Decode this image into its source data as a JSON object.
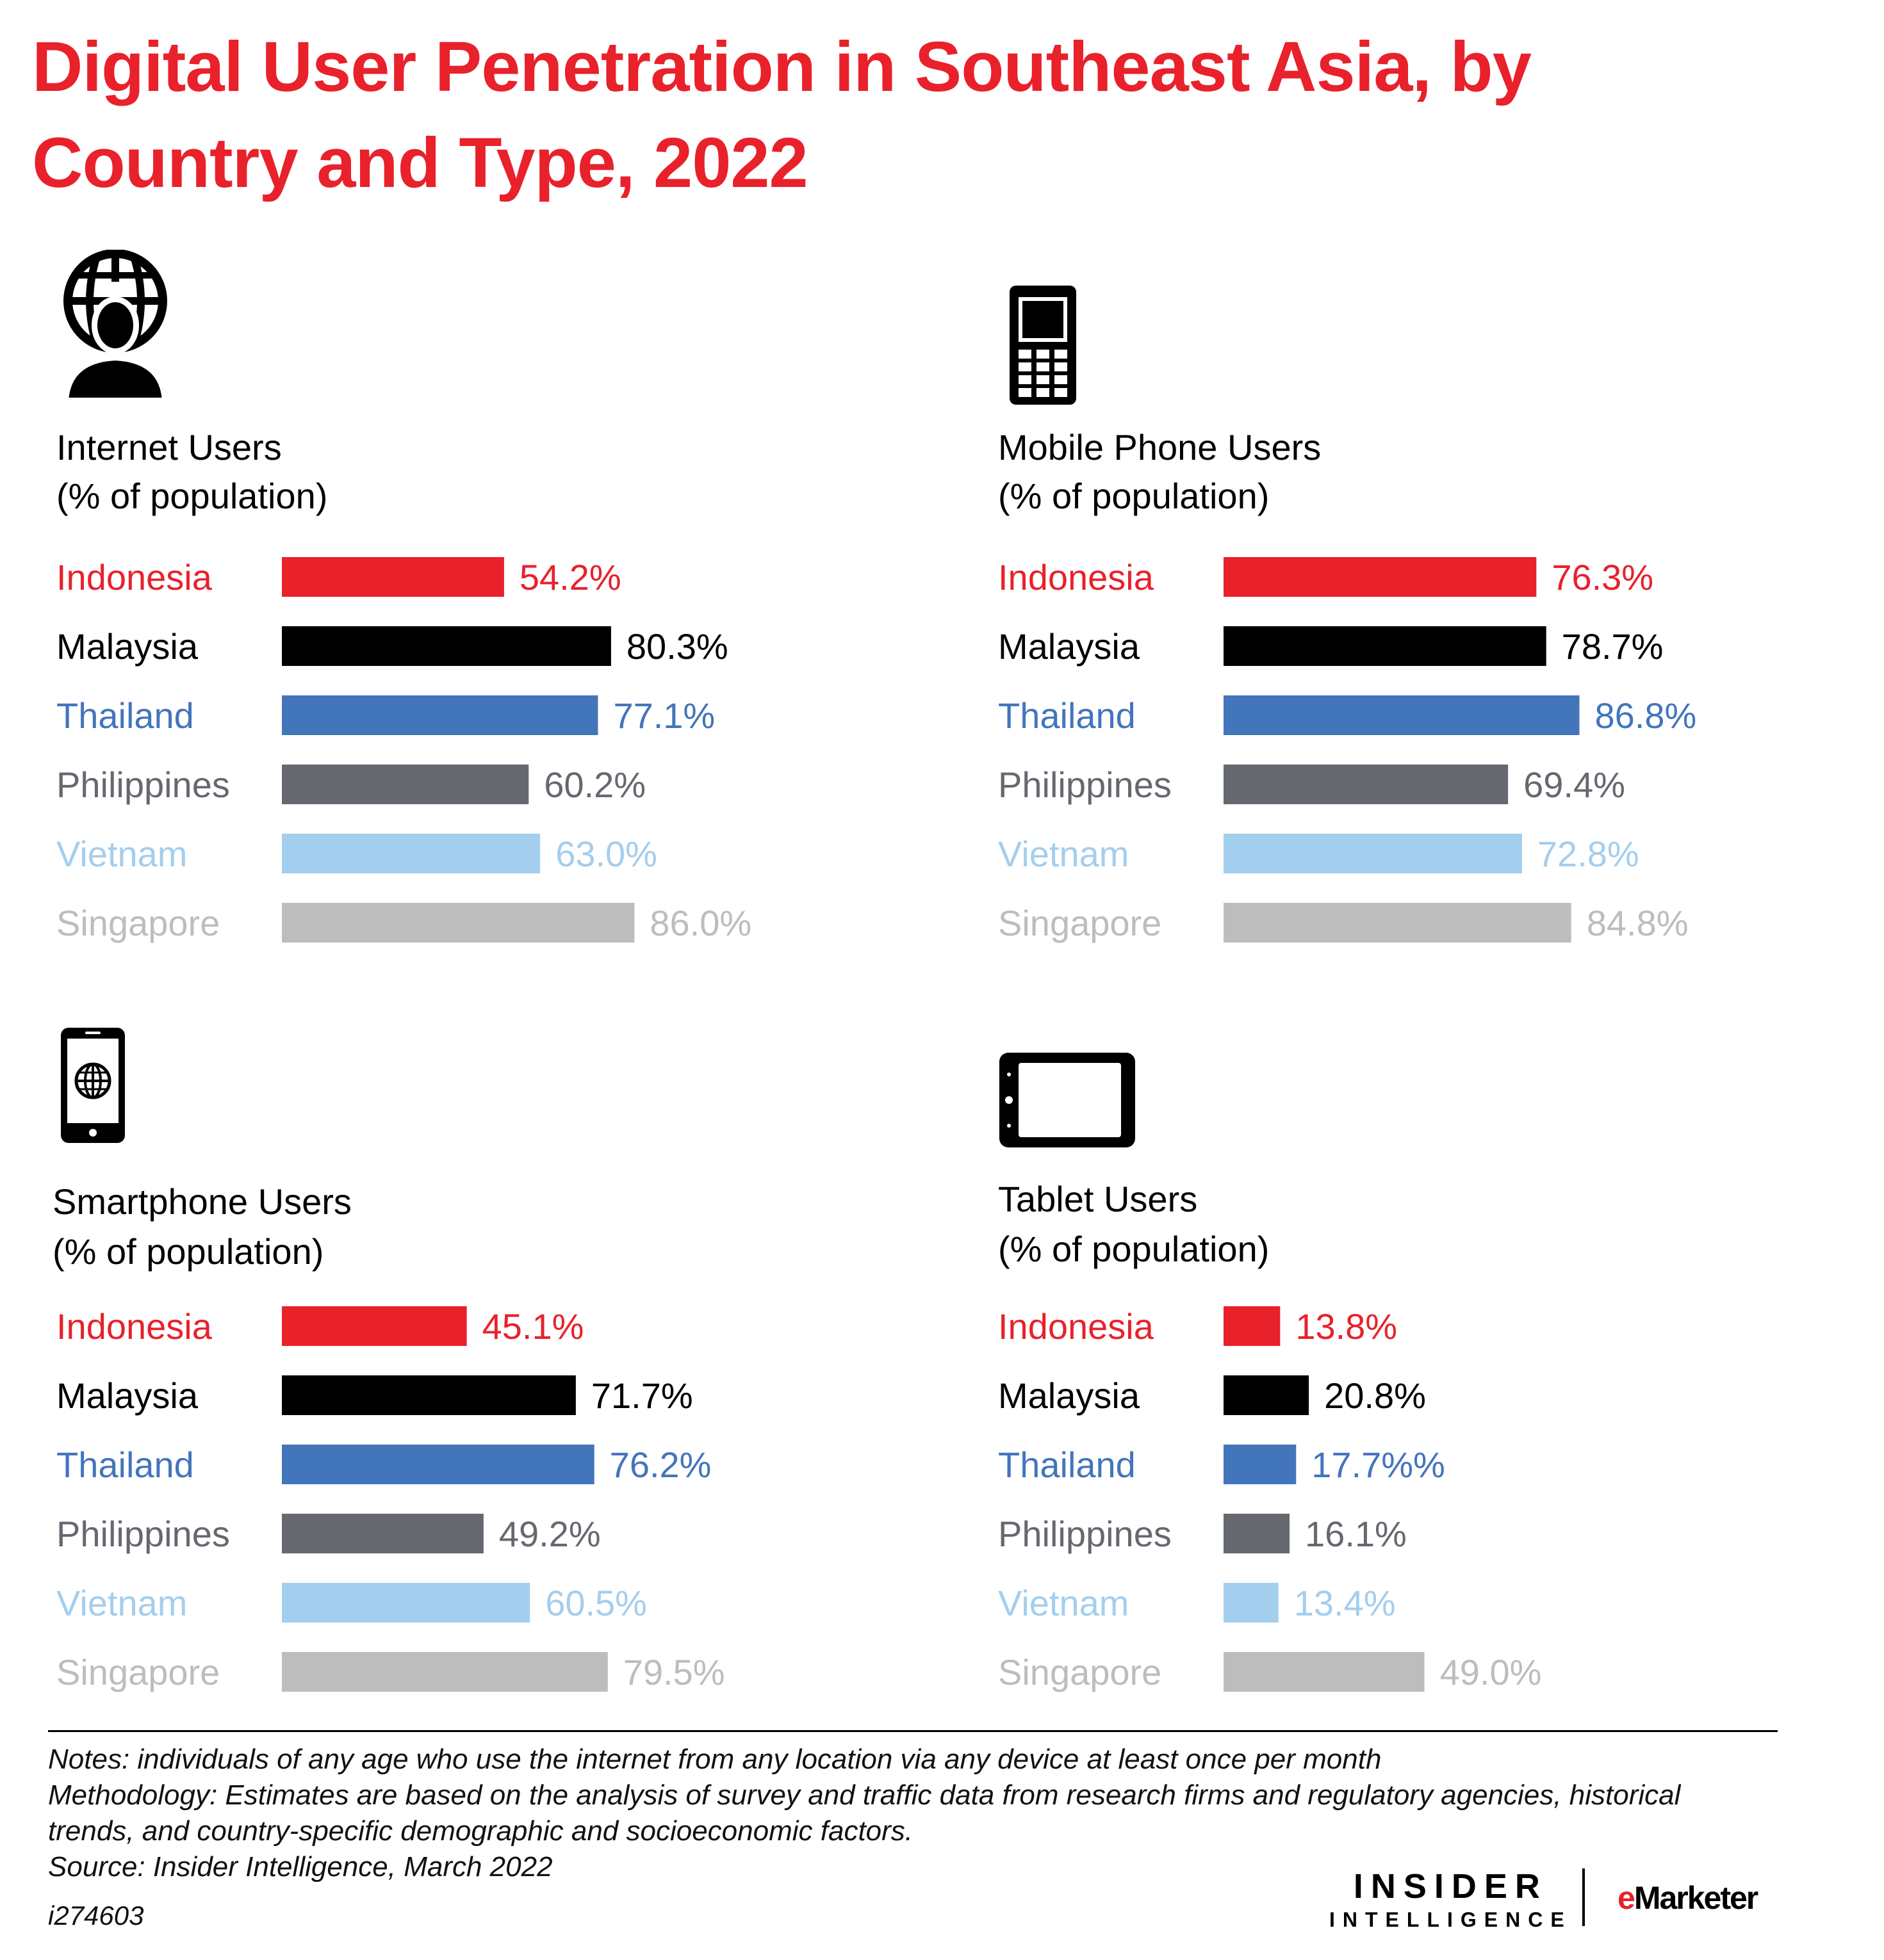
{
  "title": "Digital User Penetration in Southeast Asia, by Country and Type, 2022",
  "chart_data": [
    {
      "type": "bar",
      "title": "Internet Users",
      "subtitle": "(% of population)",
      "categories": [
        "Indonesia",
        "Malaysia",
        "Thailand",
        "Philippines",
        "Vietnam",
        "Singapore"
      ],
      "values": [
        54.2,
        80.3,
        77.1,
        60.2,
        63.0,
        86.0
      ],
      "value_labels": [
        "54.2%",
        "80.3%",
        "77.1%",
        "60.2%",
        "63.0%",
        "86.0%"
      ],
      "orientation": "horizontal",
      "icon": "globe-user-icon"
    },
    {
      "type": "bar",
      "title": "Mobile Phone Users",
      "subtitle": "(% of population)",
      "categories": [
        "Indonesia",
        "Malaysia",
        "Thailand",
        "Philippines",
        "Vietnam",
        "Singapore"
      ],
      "values": [
        76.3,
        78.7,
        86.8,
        69.4,
        72.8,
        84.8
      ],
      "value_labels": [
        "76.3%",
        "78.7%",
        "86.8%",
        "69.4%",
        "72.8%",
        "84.8%"
      ],
      "orientation": "horizontal",
      "icon": "mobile-phone-icon"
    },
    {
      "type": "bar",
      "title": "Smartphone Users",
      "subtitle": "(% of population)",
      "categories": [
        "Indonesia",
        "Malaysia",
        "Thailand",
        "Philippines",
        "Vietnam",
        "Singapore"
      ],
      "values": [
        45.1,
        71.7,
        76.2,
        49.2,
        60.5,
        79.5
      ],
      "value_labels": [
        "45.1%",
        "71.7%",
        "76.2%",
        "49.2%",
        "60.5%",
        "79.5%"
      ],
      "orientation": "horizontal",
      "icon": "smartphone-globe-icon"
    },
    {
      "type": "bar",
      "title": "Tablet Users",
      "subtitle": "(% of population)",
      "categories": [
        "Indonesia",
        "Malaysia",
        "Thailand",
        "Philippines",
        "Vietnam",
        "Singapore"
      ],
      "values": [
        13.8,
        20.8,
        17.7,
        16.1,
        13.4,
        49.0
      ],
      "value_labels": [
        "13.8%",
        "20.8%",
        "17.7%%",
        "16.1%",
        "13.4%",
        "49.0%"
      ],
      "orientation": "horizontal",
      "icon": "tablet-icon"
    }
  ],
  "series_colors": [
    "#e8212b",
    "#000000",
    "#4375bb",
    "#666870",
    "#a3ceee",
    "#bdbdbd"
  ],
  "notes": {
    "line1": "Notes: individuals of any age who use the internet from any location via any device at least once per month",
    "line2": "Methodology: Estimates are based on the analysis of survey and traffic data from research firms and regulatory agencies, historical",
    "line3": "trends, and country-specific demographic and socioeconomic factors.",
    "line4": "Source: Insider Intelligence, March 2022"
  },
  "chart_id": "i274603",
  "brand": {
    "line1": "INSIDER",
    "line2": "INTELLIGENCE",
    "emarketer_e": "e",
    "emarketer_rest": "Marketer"
  }
}
